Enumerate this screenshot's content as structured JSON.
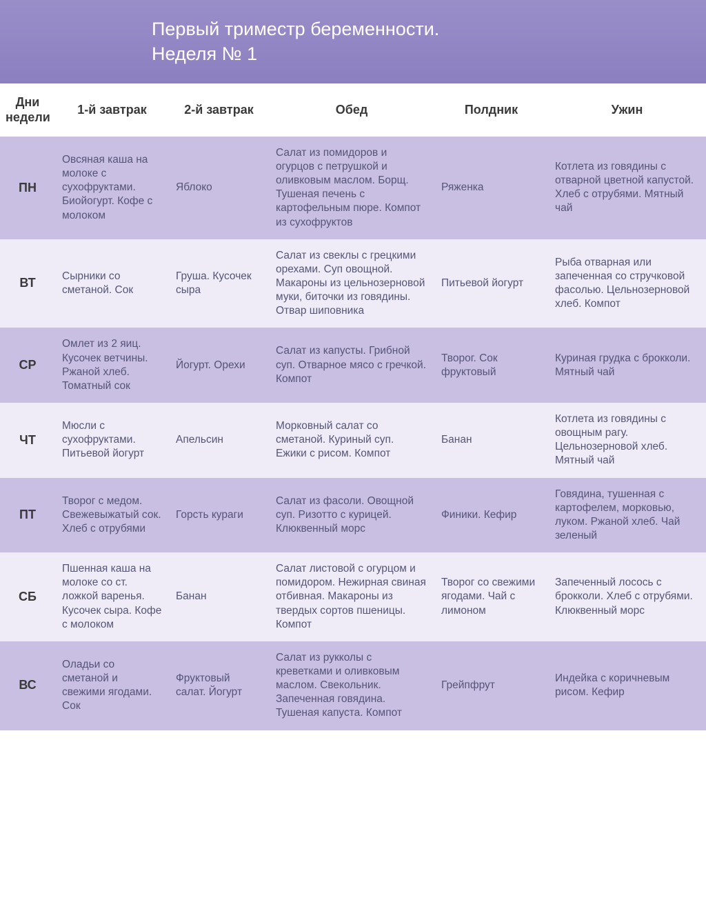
{
  "title_line1": "Первый триместр беременности.",
  "title_line2": "Неделя № 1",
  "headers": {
    "day": "Дни недели",
    "bf1": "1-й завтрак",
    "bf2": "2-й завтрак",
    "lunch": "Обед",
    "snack": "Полдник",
    "din": "Ужин"
  },
  "row_colors": {
    "odd": "#c8bfe3",
    "even": "#efecf7"
  },
  "rows": [
    {
      "day": "ПН",
      "bf1": "Овсяная каша на молоке с сухофруктами. Биойогурт. Кофе с молоком",
      "bf2": "Яблоко",
      "lunch": "Салат из помидоров и огурцов с петрушкой и оливковым маслом. Борщ. Тушеная печень с картофельным пюре. Компот из сухофруктов",
      "snack": "Ряженка",
      "din": "Котлета из говядины с отварной цветной капустой. Хлеб с отрубями. Мятный чай"
    },
    {
      "day": "ВТ",
      "bf1": "Сырники со сметаной. Сок",
      "bf2": "Груша. Кусочек сыра",
      "lunch": "Салат из свеклы с грецкими орехами. Суп овощной. Макароны из цельнозерновой муки, биточки из говядины. Отвар шиповника",
      "snack": "Питьевой йогурт",
      "din": "Рыба отварная или запеченная со стручковой фасолью. Цельнозерновой хлеб. Компот"
    },
    {
      "day": "СР",
      "bf1": "Омлет из 2 яиц. Кусочек ветчины. Ржаной хлеб. Томатный сок",
      "bf2": "Йогурт. Орехи",
      "lunch": "Салат из капусты. Грибной суп. Отварное мясо с гречкой. Компот",
      "snack": "Творог. Сок фруктовый",
      "din": "Куриная грудка с брокколи. Мятный чай"
    },
    {
      "day": "ЧТ",
      "bf1": "Мюсли с сухофруктами. Питьевой йогурт",
      "bf2": "Апельсин",
      "lunch": "Морковный салат со сметаной. Куриный суп. Ежики с рисом. Компот",
      "snack": "Банан",
      "din": "Котлета из говядины с овощным рагу. Цельнозерновой хлеб. Мятный чай"
    },
    {
      "day": "ПТ",
      "bf1": "Творог с медом. Свежевыжатый сок. Хлеб с отрубями",
      "bf2": "Горсть кураги",
      "lunch": "Салат из фасоли. Овощной суп. Ризотто с курицей. Клюквенный морс",
      "snack": "Финики. Кефир",
      "din": "Говядина, тушенная с картофелем, морковью, луком. Ржаной хлеб. Чай зеленый"
    },
    {
      "day": "СБ",
      "bf1": "Пшенная каша на молоке со ст. ложкой варенья. Кусочек сыра. Кофе с молоком",
      "bf2": "Банан",
      "lunch": "Салат листовой с огурцом и помидором. Нежирная свиная отбивная. Макароны из твердых сортов пшеницы. Компот",
      "snack": "Творог со свежими ягодами. Чай с лимоном",
      "din": "Запеченный лосось с брокколи. Хлеб с отрубями. Клюквенный морс"
    },
    {
      "day": "ВС",
      "bf1": "Оладьи со сметаной и свежими ягодами. Сок",
      "bf2": "Фруктовый салат. Йогурт",
      "lunch": "Салат из рукколы с креветками и оливковым маслом. Свекольник. Запеченная говядина. Тушеная капуста. Компот",
      "snack": "Грейпфрут",
      "din": "Индейка с коричневым рисом. Кефир"
    }
  ]
}
